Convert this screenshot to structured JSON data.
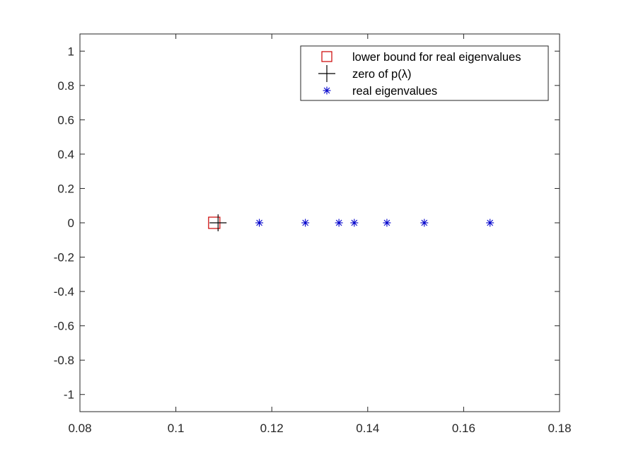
{
  "chart_data": {
    "type": "scatter",
    "title": "",
    "xlabel": "",
    "ylabel": "",
    "xlim": [
      0.08,
      0.18
    ],
    "ylim": [
      -1.1,
      1.1
    ],
    "xticks": [
      0.08,
      0.1,
      0.12,
      0.14,
      0.16,
      0.18
    ],
    "xtick_labels": [
      "0.08",
      "0.1",
      "0.12",
      "0.14",
      "0.16",
      "0.18"
    ],
    "yticks": [
      1,
      0.8,
      0.6,
      0.4,
      0.2,
      0,
      -0.2,
      -0.4,
      -0.6,
      -0.8,
      -1
    ],
    "ytick_labels": [
      "1",
      "0.8",
      "0.6",
      "0.4",
      "0.2",
      "0",
      "-0.2",
      "-0.4",
      "-0.6",
      "-0.8",
      "-1"
    ],
    "grid": false,
    "legend_position": "top-right",
    "series": [
      {
        "name": "lower bound for real eigenvalues",
        "marker": "square",
        "color": "#cc0000",
        "points": [
          {
            "x": 0.108,
            "y": 0
          }
        ]
      },
      {
        "name": "zero of p(λ)",
        "marker": "plus",
        "color": "#000000",
        "points": [
          {
            "x": 0.1088,
            "y": 0
          }
        ]
      },
      {
        "name": "real eigenvalues",
        "marker": "asterisk",
        "color": "#0000cc",
        "points": [
          {
            "x": 0.1174,
            "y": 0
          },
          {
            "x": 0.127,
            "y": 0
          },
          {
            "x": 0.134,
            "y": 0
          },
          {
            "x": 0.1372,
            "y": 0
          },
          {
            "x": 0.144,
            "y": 0
          },
          {
            "x": 0.1518,
            "y": 0
          },
          {
            "x": 0.1655,
            "y": 0
          }
        ]
      }
    ]
  }
}
